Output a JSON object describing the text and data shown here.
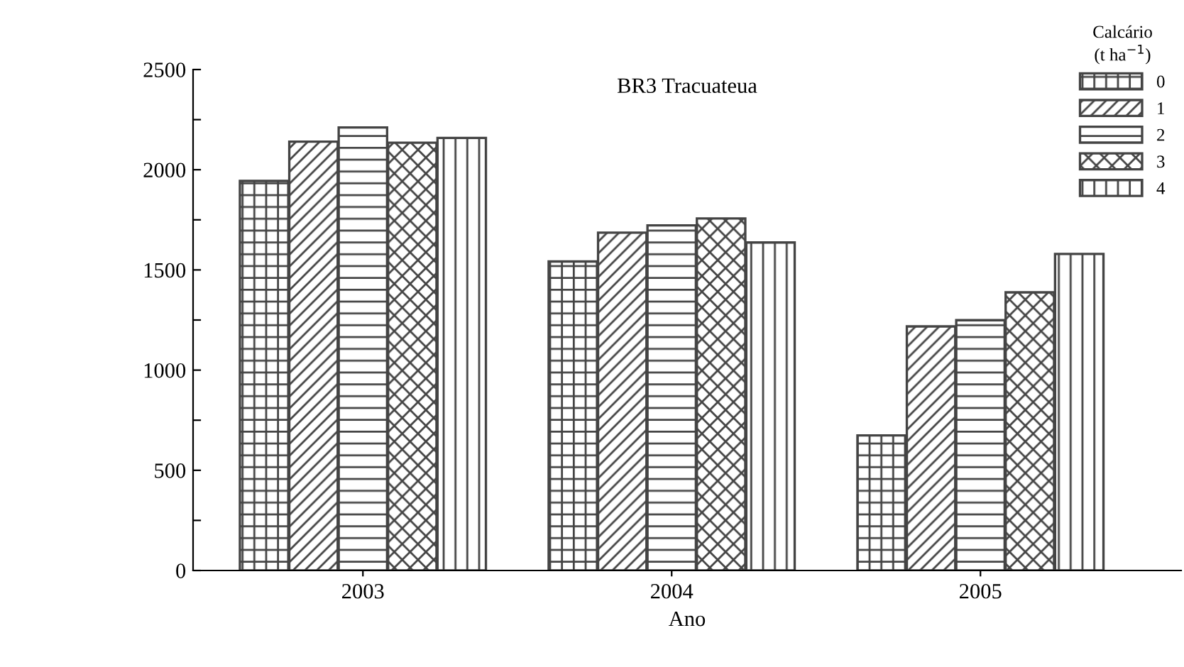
{
  "chart_data": {
    "type": "bar",
    "title": "BR3 Tracuateua",
    "xlabel": "Ano",
    "legend_title": "Calcário\n(t ha$^{−1}$)",
    "categories": [
      "2003",
      "2004",
      "2005"
    ],
    "series": [
      {
        "name": "0",
        "color": "#444444",
        "values": [
          1944,
          1542,
          674
        ]
      },
      {
        "name": "1",
        "color": "#444444",
        "values": [
          2140,
          1686,
          1218
        ]
      },
      {
        "name": "2",
        "color": "#444444",
        "values": [
          2211,
          1722,
          1249
        ]
      },
      {
        "name": "3",
        "color": "#444444",
        "values": [
          2135,
          1757,
          1388
        ]
      },
      {
        "name": "4",
        "color": "#444444",
        "values": [
          2159,
          1637,
          1580
        ]
      }
    ],
    "ylim": [
      0,
      2500
    ],
    "yticks": [
      0,
      {
        "value": 250,
        "label": null
      },
      500,
      {
        "value": 750,
        "label": null
      },
      1000,
      {
        "value": 1250,
        "label": null
      },
      1500,
      {
        "value": 1750,
        "label": null
      },
      2000,
      {
        "value": 2250,
        "label": null
      },
      2500
    ],
    "grid": false,
    "legend": "top right"
  }
}
